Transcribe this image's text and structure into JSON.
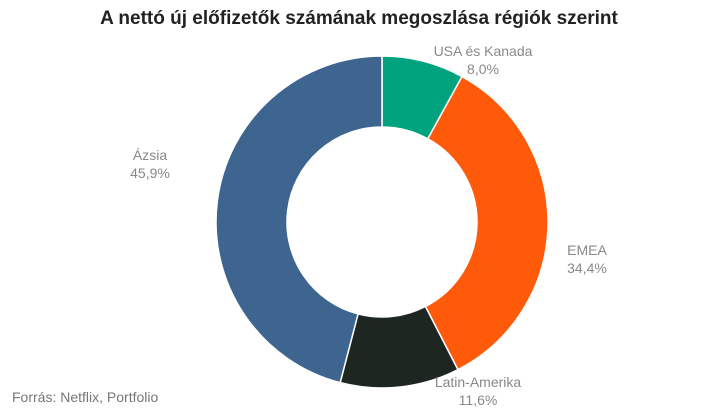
{
  "chart_data": {
    "type": "pie",
    "title": "A nettó új előfizetők számának megoszlása régiók szerint",
    "slices": [
      {
        "label": "USA és Kanada",
        "value": 8.0,
        "value_label": "8,0%",
        "color": "#00a37d"
      },
      {
        "label": "EMEA",
        "value": 34.4,
        "value_label": "34,4%",
        "color": "#ff5a0a"
      },
      {
        "label": "Latin-Amerika",
        "value": 11.6,
        "value_label": "11,6%",
        "color": "#1e2622"
      },
      {
        "label": "Ázsia",
        "value": 45.9,
        "value_label": "45,9%",
        "color": "#3e6590"
      }
    ]
  },
  "source": "Forrás: Netflix, Portfolio"
}
